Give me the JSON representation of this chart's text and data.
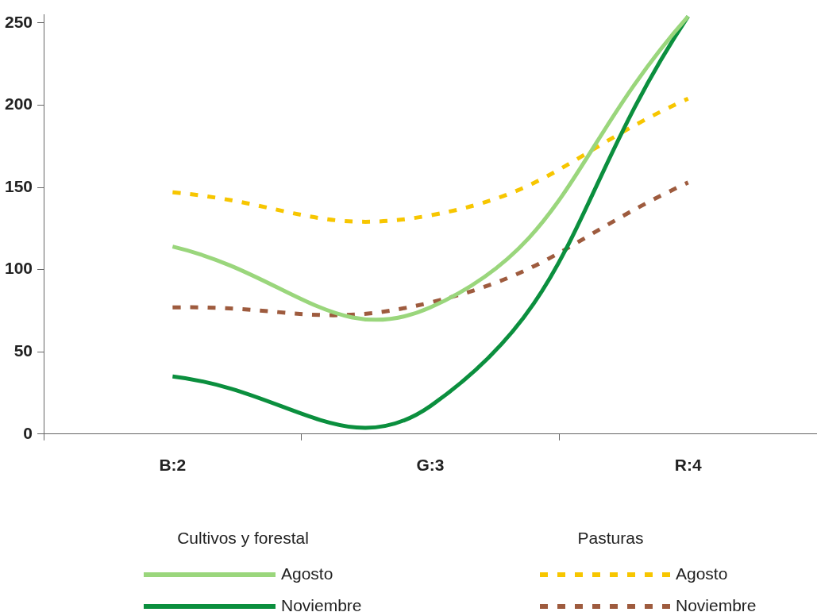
{
  "chart_data": {
    "type": "line",
    "categories": [
      "B:2",
      "G:3",
      "R:4"
    ],
    "series": [
      {
        "name": "Agosto",
        "color": "#9ad67c",
        "values": [
          114,
          77,
          254
        ],
        "line_style": "solid"
      },
      {
        "name": "Noviembre",
        "color": "#0b8f3e",
        "values": [
          35,
          17,
          254
        ],
        "line_style": "solid"
      },
      {
        "name": "Agosto",
        "color": "#f7c600",
        "values": [
          147,
          133,
          204
        ],
        "line_style": "dashed"
      },
      {
        "name": "Noviembre",
        "color": "#9e5b3e",
        "values": [
          77,
          80,
          153
        ],
        "line_style": "dashed"
      }
    ],
    "annotations": [
      "Cultivos y forestal",
      "Pasturas"
    ],
    "ylim": [
      0,
      255
    ],
    "yticks": [
      0,
      50,
      100,
      150,
      200,
      250
    ],
    "grid": false,
    "legend": "bottom",
    "marker": "none"
  }
}
